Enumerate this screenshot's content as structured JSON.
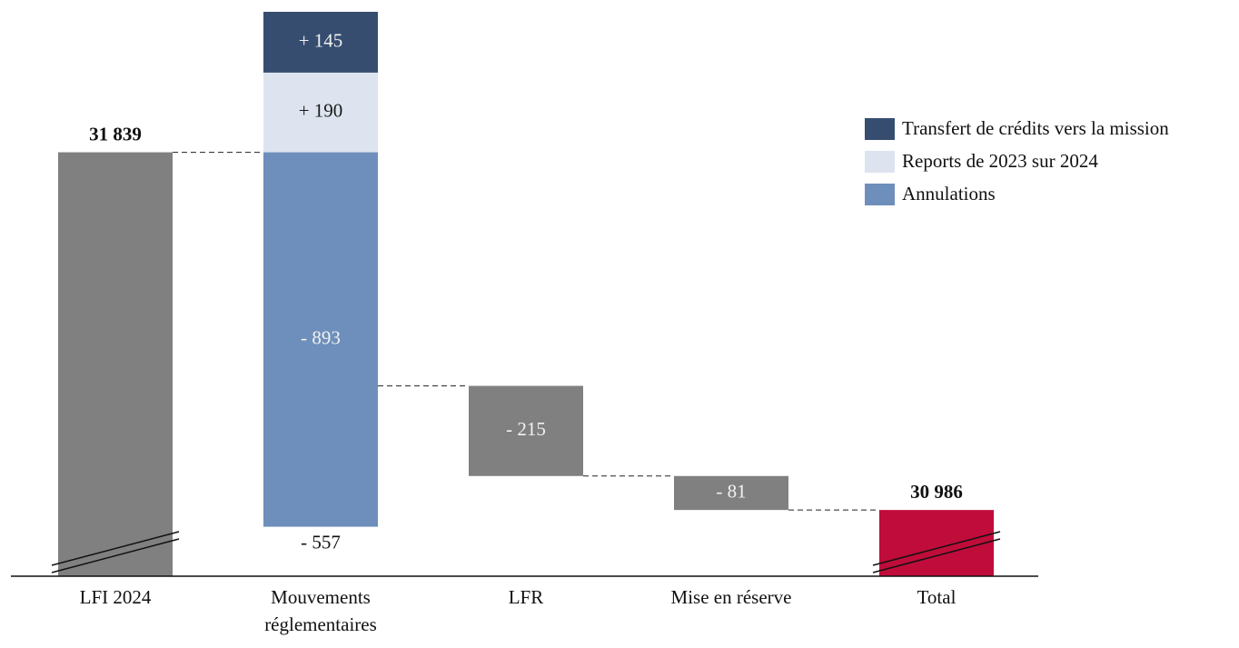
{
  "chart_data": {
    "type": "waterfall",
    "categories": [
      "LFI 2024",
      "Mouvements réglementaires",
      "LFR",
      "Mise en réserve",
      "Total"
    ],
    "measure": [
      "absolute",
      "relative",
      "relative",
      "relative",
      "total"
    ],
    "values": [
      31839,
      -557,
      -215,
      -81,
      30986
    ],
    "value_labels": [
      "31 839",
      "- 557",
      "- 215",
      "- 81",
      "30 986"
    ],
    "color": "#808080",
    "total_color": "#c00c3b",
    "series": [
      {
        "name": "Transfert de crédits vers la mission",
        "color": "#364d70",
        "values": [
          null,
          145,
          null,
          null,
          null
        ],
        "value_labels": [
          null,
          "+ 145",
          null,
          null,
          null
        ]
      },
      {
        "name": "Reports de 2023 sur 2024",
        "color": "#dde4ef",
        "values": [
          null,
          190,
          null,
          null,
          null
        ],
        "value_labels": [
          null,
          "+ 190",
          null,
          null,
          null
        ]
      },
      {
        "name": "Annulations",
        "color": "#6e8fbb",
        "values": [
          null,
          -893,
          null,
          null,
          null
        ],
        "value_labels": [
          null,
          "- 893",
          null,
          null,
          null
        ]
      }
    ]
  }
}
